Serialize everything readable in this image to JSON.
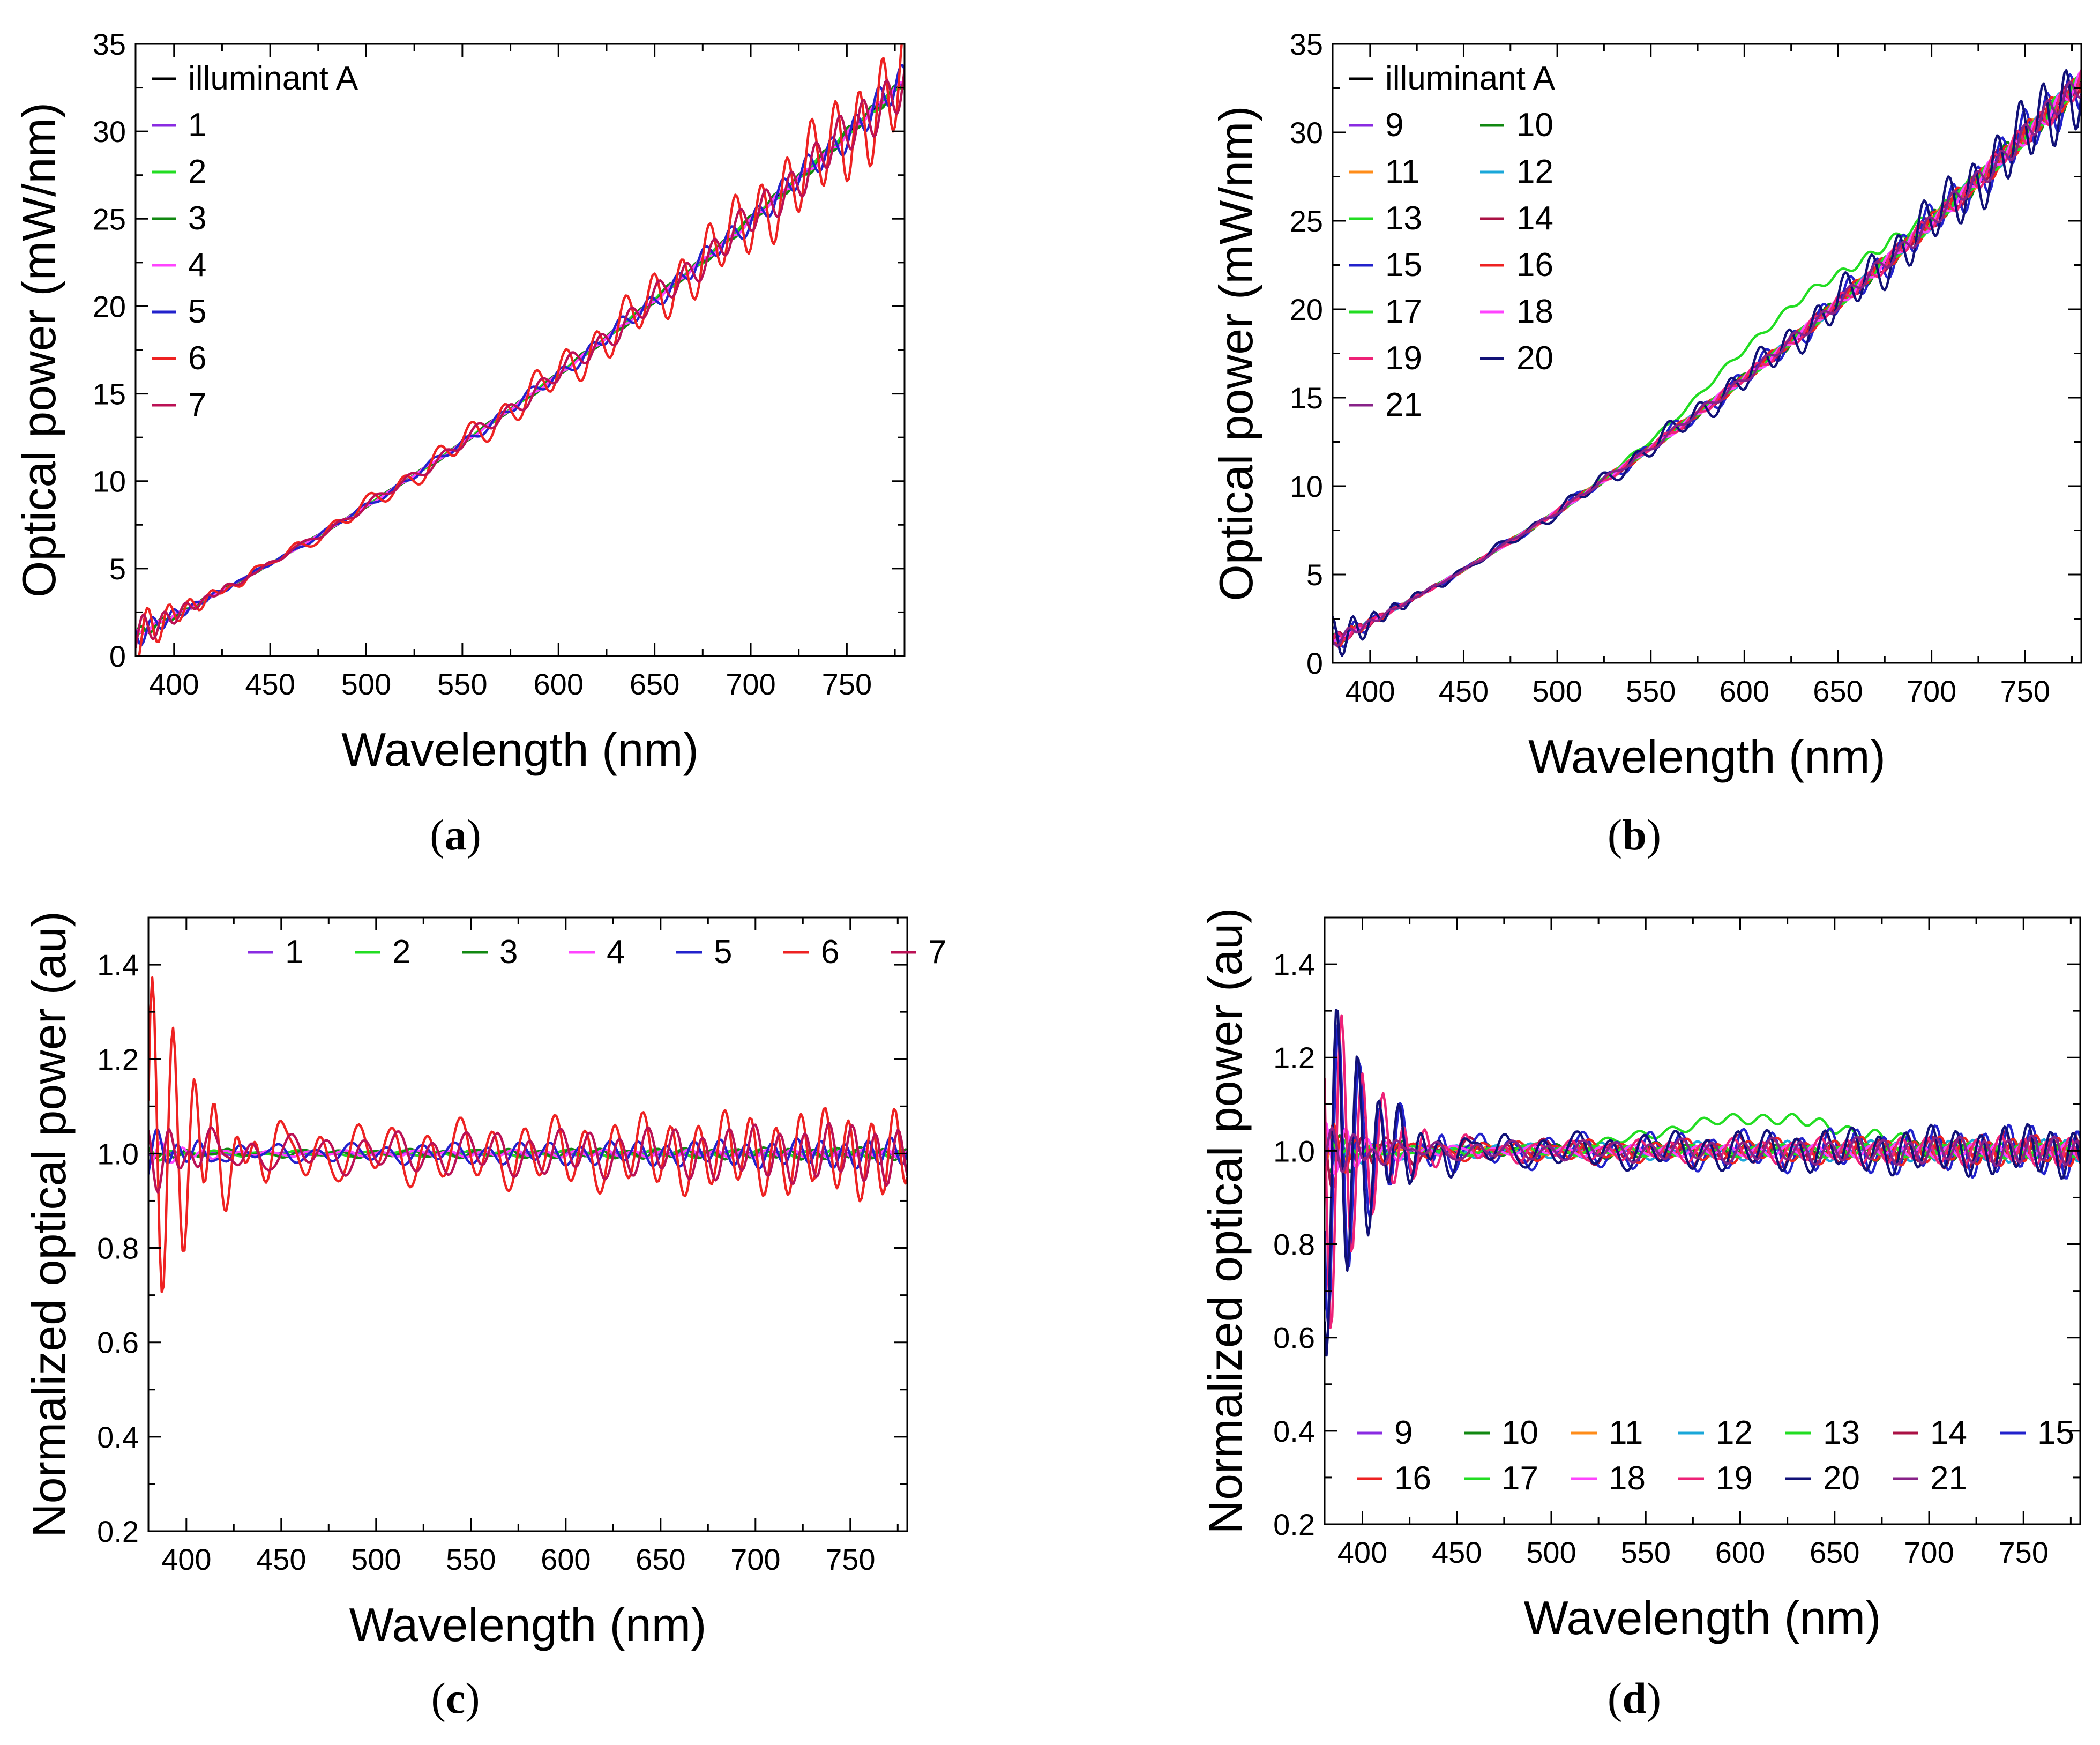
{
  "chart_data": [
    {
      "panel_label": "a",
      "type": "line",
      "xlabel": "Wavelength (nm)",
      "ylabel": "Optical power (mW/nm)",
      "xlim": [
        380,
        780
      ],
      "ylim": [
        0,
        35
      ],
      "xticks": [
        400,
        450,
        500,
        550,
        600,
        650,
        700,
        750
      ],
      "yticks": [
        0,
        5,
        10,
        15,
        20,
        25,
        30,
        35
      ],
      "legend_position": "top-left",
      "legend_columns": 1,
      "series": [
        {
          "name": "illuminant A",
          "color": "#000000",
          "amp": 0,
          "decay": 0
        },
        {
          "name": "1",
          "color": "#8a2be2",
          "amp": 0.05,
          "decay": 0
        },
        {
          "name": "2",
          "color": "#22dd22",
          "amp": 0.1,
          "decay": 0
        },
        {
          "name": "3",
          "color": "#118811",
          "amp": 0.15,
          "decay": 0.3
        },
        {
          "name": "4",
          "color": "#ff44ff",
          "amp": 0.1,
          "decay": 0.2
        },
        {
          "name": "5",
          "color": "#2222cc",
          "amp": 0.4,
          "decay": 0.6
        },
        {
          "name": "6",
          "color": "#ee2222",
          "amp": 1.2,
          "decay": 1.2
        },
        {
          "name": "7",
          "color": "#bb1155",
          "amp": 0.6,
          "decay": 0.8
        }
      ]
    },
    {
      "panel_label": "b",
      "type": "line",
      "xlabel": "Wavelength (nm)",
      "ylabel": "Optical power (mW/nm)",
      "xlim": [
        380,
        780
      ],
      "ylim": [
        0,
        35
      ],
      "xticks": [
        400,
        450,
        500,
        550,
        600,
        650,
        700,
        750
      ],
      "yticks": [
        0,
        5,
        10,
        15,
        20,
        25,
        30,
        35
      ],
      "legend_position": "top-left",
      "legend_columns": 2,
      "series": [
        {
          "name": "illuminant A",
          "color": "#000000",
          "amp": 0,
          "decay": 0
        },
        {
          "name": "9",
          "color": "#8a2be2",
          "amp": 0.1,
          "decay": 0
        },
        {
          "name": "10",
          "color": "#118811",
          "amp": 0.3,
          "decay": 0.3
        },
        {
          "name": "11",
          "color": "#ff8c1a",
          "amp": 0.2,
          "decay": 0
        },
        {
          "name": "12",
          "color": "#1aa7d9",
          "amp": 0.2,
          "decay": 0.2
        },
        {
          "name": "13",
          "color": "#22dd22",
          "amp": 0.2,
          "decay": 0,
          "bump": 1.2
        },
        {
          "name": "14",
          "color": "#aa1144",
          "amp": 0.3,
          "decay": 0.3
        },
        {
          "name": "15",
          "color": "#2222cc",
          "amp": 0.6,
          "decay": 0.6
        },
        {
          "name": "16",
          "color": "#ee2222",
          "amp": 0.3,
          "decay": 0.4
        },
        {
          "name": "17",
          "color": "#22dd22",
          "amp": 0.2,
          "decay": 0
        },
        {
          "name": "18",
          "color": "#ff44ff",
          "amp": 0.2,
          "decay": 0
        },
        {
          "name": "19",
          "color": "#ee2277",
          "amp": 0.3,
          "decay": 0.3
        },
        {
          "name": "20",
          "color": "#111177",
          "amp": 0.9,
          "decay": 1.0
        },
        {
          "name": "21",
          "color": "#882288",
          "amp": 0.3,
          "decay": 0.3
        }
      ]
    },
    {
      "panel_label": "c",
      "type": "line",
      "xlabel": "Wavelength (nm)",
      "ylabel": "Normalized optical power (au)",
      "xlim": [
        380,
        780
      ],
      "ylim": [
        0.2,
        1.5
      ],
      "xticks": [
        400,
        450,
        500,
        550,
        600,
        650,
        700,
        750
      ],
      "yticks": [
        0.2,
        0.4,
        0.6,
        0.8,
        1.0,
        1.2,
        1.4
      ],
      "legend_position": "top-right",
      "legend_columns": 7,
      "series": [
        {
          "name": "1",
          "color": "#8a2be2",
          "amp": 0.003,
          "decay": 0
        },
        {
          "name": "2",
          "color": "#22dd22",
          "amp": 0.006,
          "decay": 0.02
        },
        {
          "name": "3",
          "color": "#118811",
          "amp": 0.008,
          "decay": 0.02
        },
        {
          "name": "4",
          "color": "#ff44ff",
          "amp": 0.006,
          "decay": 0.05
        },
        {
          "name": "5",
          "color": "#2222cc",
          "amp": 0.02,
          "decay": 0.08
        },
        {
          "name": "6",
          "color": "#ee2222",
          "amp": 0.06,
          "decay": 0.75
        },
        {
          "name": "7",
          "color": "#bb1155",
          "amp": 0.04,
          "decay": 0.12
        }
      ]
    },
    {
      "panel_label": "d",
      "type": "line",
      "xlabel": "Wavelength (nm)",
      "ylabel": "Normalized optical power (au)",
      "xlim": [
        380,
        780
      ],
      "ylim": [
        0.2,
        1.5
      ],
      "xticks": [
        400,
        450,
        500,
        550,
        600,
        650,
        700,
        750
      ],
      "yticks": [
        0.2,
        0.4,
        0.6,
        0.8,
        1.0,
        1.2,
        1.4
      ],
      "legend_position": "bottom",
      "legend_columns": 7,
      "series": [
        {
          "name": "9",
          "color": "#8a2be2",
          "amp": 0.005,
          "decay": 0.02
        },
        {
          "name": "10",
          "color": "#118811",
          "amp": 0.015,
          "decay": 0.1
        },
        {
          "name": "11",
          "color": "#ff8c1a",
          "amp": 0.01,
          "decay": 0.05
        },
        {
          "name": "12",
          "color": "#1aa7d9",
          "amp": 0.015,
          "decay": 0.08
        },
        {
          "name": "13",
          "color": "#22dd22",
          "amp": 0.01,
          "decay": 0.05,
          "bump": 0.07
        },
        {
          "name": "14",
          "color": "#aa1144",
          "amp": 0.025,
          "decay": 0.12
        },
        {
          "name": "15",
          "color": "#2222cc",
          "amp": 0.035,
          "decay": 0.7
        },
        {
          "name": "16",
          "color": "#ee2222",
          "amp": 0.02,
          "decay": 0.1
        },
        {
          "name": "17",
          "color": "#22dd22",
          "amp": 0.01,
          "decay": 0.03
        },
        {
          "name": "18",
          "color": "#ff44ff",
          "amp": 0.01,
          "decay": 0.12
        },
        {
          "name": "19",
          "color": "#ee2277",
          "amp": 0.02,
          "decay": 0.72
        },
        {
          "name": "20",
          "color": "#111177",
          "amp": 0.035,
          "decay": 0.75
        },
        {
          "name": "21",
          "color": "#882288",
          "amp": 0.02,
          "decay": 0.1
        }
      ]
    }
  ]
}
